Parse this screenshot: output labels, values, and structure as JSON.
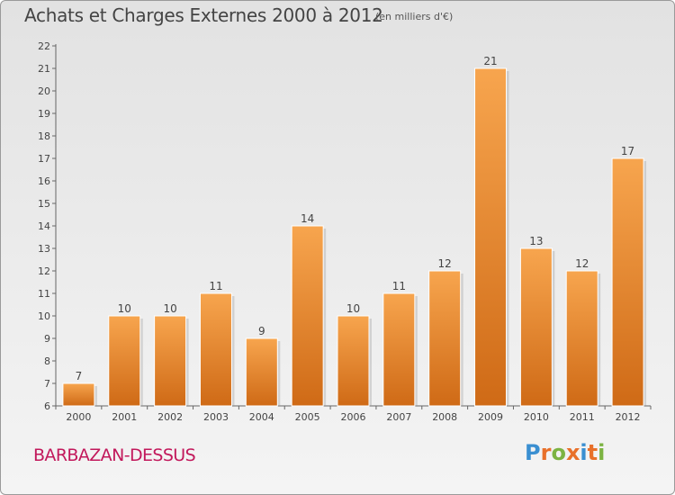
{
  "header": {
    "title": "Achats et Charges Externes 2000 à 2012",
    "subtitle": "(en milliers d'€)"
  },
  "footer": {
    "commune": "BARBAZAN-DESSUS",
    "logo": {
      "letters": [
        "P",
        "r",
        "o",
        "x",
        "i",
        "t",
        "i"
      ],
      "colors": [
        "#3a8fd1",
        "#e8702a",
        "#7cb342",
        "#e8702a",
        "#3a8fd1",
        "#e8702a",
        "#7cb342"
      ]
    }
  },
  "chart_data": {
    "type": "bar",
    "categories": [
      "2000",
      "2001",
      "2002",
      "2003",
      "2004",
      "2005",
      "2006",
      "2007",
      "2008",
      "2009",
      "2010",
      "2011",
      "2012"
    ],
    "values": [
      7,
      10,
      10,
      11,
      9,
      14,
      10,
      11,
      12,
      21,
      13,
      12,
      17
    ],
    "ylim": [
      6,
      22
    ],
    "yticks": [
      6,
      7,
      8,
      9,
      10,
      11,
      12,
      13,
      14,
      15,
      16,
      17,
      18,
      19,
      20,
      21,
      22
    ],
    "grid": false,
    "bar_color_top": "#f7a54e",
    "bar_color_bottom": "#cf6a16",
    "show_data_labels": true
  }
}
